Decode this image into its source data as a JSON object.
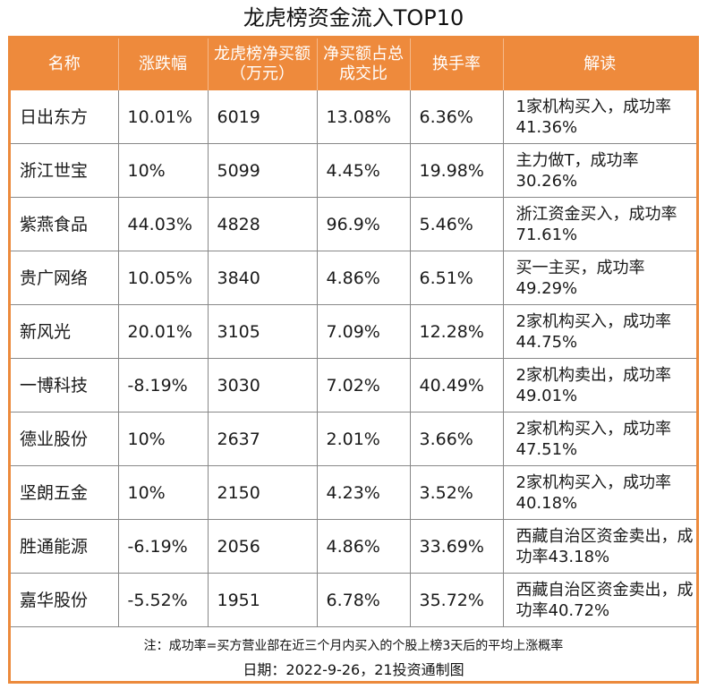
{
  "title": "龙虎榜资金流入TOP10",
  "headers": [
    "名称",
    "涨跌幅",
    "龙虎榜净买额（万元）",
    "净买额占总成交比",
    "换手率",
    "解读"
  ],
  "rows": [
    [
      "日出东方",
      "10.01%",
      "6019",
      "13.08%",
      "6.36%",
      "1家机构买入，成功率41.36%"
    ],
    [
      "浙江世宝",
      "10%",
      "5099",
      "4.45%",
      "19.98%",
      "主力做T，成功率30.26%"
    ],
    [
      "紫燕食品",
      "44.03%",
      "4828",
      "96.9%",
      "5.46%",
      "浙江资金买入，成功率71.61%"
    ],
    [
      "贵广网络",
      "10.05%",
      "3840",
      "4.86%",
      "6.51%",
      "买一主买，成功率49.29%"
    ],
    [
      "新风光",
      "20.01%",
      "3105",
      "7.09%",
      "12.28%",
      "2家机构买入，成功率44.75%"
    ],
    [
      "一博科技",
      "-8.19%",
      "3030",
      "7.02%",
      "40.49%",
      "2家机构卖出，成功率49.01%"
    ],
    [
      "德业股份",
      "10%",
      "2637",
      "2.01%",
      "3.66%",
      "2家机构买入，成功率47.51%"
    ],
    [
      "坚朗五金",
      "10%",
      "2150",
      "4.23%",
      "3.52%",
      "2家机构买入，成功率40.18%"
    ],
    [
      "胜通能源",
      "-6.19%",
      "2056",
      "4.86%",
      "33.69%",
      "西藏自治区资金卖出，成功率43.18%"
    ],
    [
      "嘉华股份",
      "-5.52%",
      "1951",
      "6.78%",
      "35.72%",
      "西藏自治区资金卖出，成功率40.72%"
    ]
  ],
  "note": "注：成功率=买方营业部在近三个月内买入的个股上榜3天后的平均上涨概率",
  "date": "日期：2022-9-26，21投资通制图",
  "colors": {
    "header_bg": "#ee8a3c",
    "border": "#ec8a3c"
  }
}
